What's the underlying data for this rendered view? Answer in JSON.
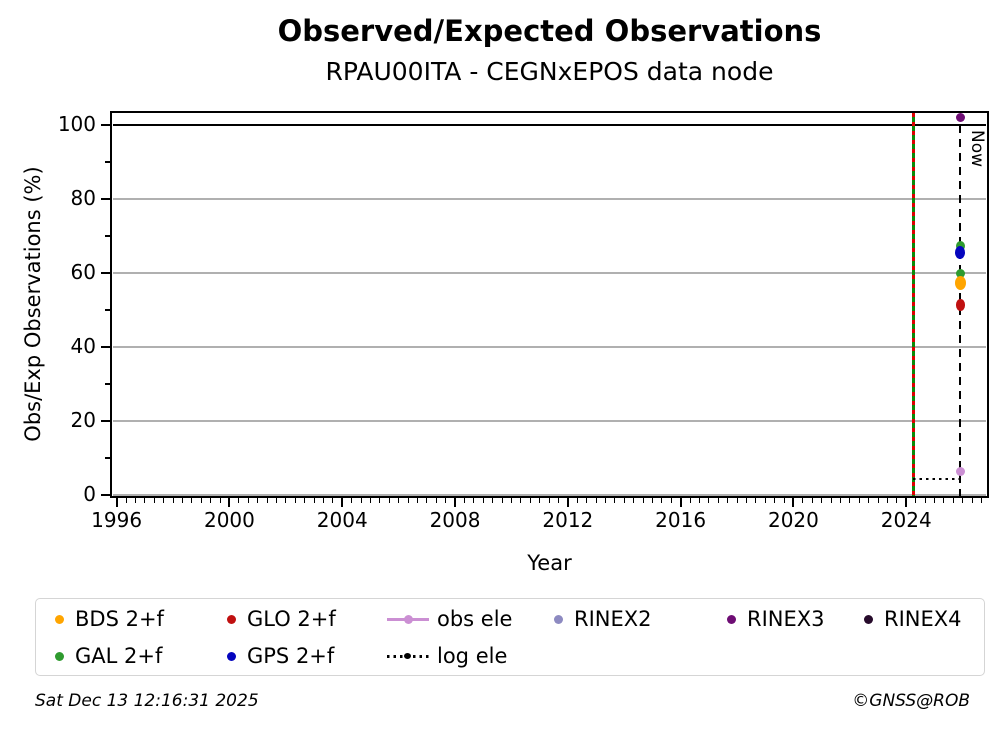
{
  "page": {
    "title": "Observed/Expected Observations",
    "subtitle": "RPAU00ITA - CEGNxEPOS data node"
  },
  "footer": {
    "timestamp": "Sat Dec 13 12:16:31 2025",
    "copyright": "©GNSS@ROB"
  },
  "chart_data": {
    "type": "scatter",
    "title": "Observed/Expected Observations",
    "subtitle": "RPAU00ITA - CEGNxEPOS data node",
    "xlabel": "Year",
    "ylabel": "Obs/Exp Observations (%)",
    "xlim": [
      1995.8,
      2026.9
    ],
    "ylim": [
      -0.5,
      103.5
    ],
    "x_major_ticks": [
      1996,
      2000,
      2004,
      2008,
      2012,
      2016,
      2020,
      2024
    ],
    "x_minor_tick_step_years": 0.33333,
    "y_major_ticks": [
      0,
      20,
      40,
      60,
      80,
      100
    ],
    "y_minor_ticks": [
      10,
      30,
      50,
      70,
      90
    ],
    "grid": {
      "horizontal": true,
      "vertical": false,
      "color": "#b0b0b0",
      "levels": [
        0,
        20,
        40,
        60,
        80
      ]
    },
    "reference_lines": [
      {
        "name": "hundred-percent-line",
        "type": "hline",
        "y": 100,
        "color": "#000000",
        "style": "solid"
      },
      {
        "name": "campaign-start-line",
        "type": "vline",
        "x": 2024.25,
        "color_main": "#0a8a0a",
        "color_dash": "#dd0000",
        "style": "solid-green-with-red-dashes"
      },
      {
        "name": "now-line",
        "type": "vline",
        "x": 2025.92,
        "y_top": 100,
        "color": "#000000",
        "style": "dashed",
        "label": "Now"
      },
      {
        "name": "log-ele-line",
        "type": "hsegment",
        "series": "log ele",
        "y": 4.3,
        "x1": 2024.25,
        "x2": 2025.92,
        "color": "#000000",
        "style": "dotted"
      }
    ],
    "series": [
      {
        "name": "GAL 2+f",
        "color": "#2F9B2F",
        "marker": "circle",
        "points": [
          {
            "x": 2025.92,
            "y": 67.4,
            "w": 9,
            "h": 10
          },
          {
            "x": 2025.92,
            "y": 60.0,
            "w": 9,
            "h": 9
          }
        ]
      },
      {
        "name": "GPS 2+f",
        "color": "#0505BE",
        "marker": "circle",
        "points": [
          {
            "x": 2025.92,
            "y": 65.5,
            "w": 10,
            "h": 13
          }
        ]
      },
      {
        "name": "BDS 2+f",
        "color": "#FFA500",
        "marker": "circle",
        "points": [
          {
            "x": 2025.92,
            "y": 57.3,
            "w": 11,
            "h": 14
          }
        ]
      },
      {
        "name": "GLO 2+f",
        "color": "#C01010",
        "marker": "circle",
        "points": [
          {
            "x": 2025.92,
            "y": 51.3,
            "w": 9.5,
            "h": 12
          }
        ]
      },
      {
        "name": "RINEX3",
        "color": "#6E0D74",
        "marker": "circle",
        "points": [
          {
            "x": 2025.92,
            "y": 101.9,
            "w": 9,
            "h": 9
          }
        ]
      },
      {
        "name": "obs ele",
        "color": "#CB8FD3",
        "marker": "circle",
        "points": [
          {
            "x": 2025.92,
            "y": 6.4,
            "w": 9,
            "h": 9
          }
        ]
      },
      {
        "name": "RINEX2",
        "color": "#8D8AC1",
        "marker": "circle",
        "points": []
      },
      {
        "name": "RINEX4",
        "color": "#270B2B",
        "marker": "circle",
        "points": []
      },
      {
        "name": "log ele",
        "color": "#000000",
        "marker": "dotted-line",
        "points": []
      }
    ],
    "now_label": "Now",
    "legend": {
      "rows": [
        [
          {
            "label": "BDS 2+f",
            "marker": "dot",
            "color": "#FFA500"
          },
          {
            "label": "GLO 2+f",
            "marker": "dot",
            "color": "#C01010"
          },
          {
            "label": "obs ele",
            "marker": "line-dot",
            "color": "#CB8FD3"
          },
          {
            "label": "RINEX2",
            "marker": "dot",
            "color": "#8D8AC1"
          },
          {
            "label": "RINEX3",
            "marker": "dot",
            "color": "#6E0D74"
          },
          {
            "label": "RINEX4",
            "marker": "dot",
            "color": "#270B2B"
          }
        ],
        [
          {
            "label": "GAL 2+f",
            "marker": "dot",
            "color": "#2F9B2F"
          },
          {
            "label": "GPS 2+f",
            "marker": "dot",
            "color": "#0505BE"
          },
          {
            "label": "log ele",
            "marker": "dotted-line",
            "color": "#000000"
          }
        ]
      ]
    }
  }
}
